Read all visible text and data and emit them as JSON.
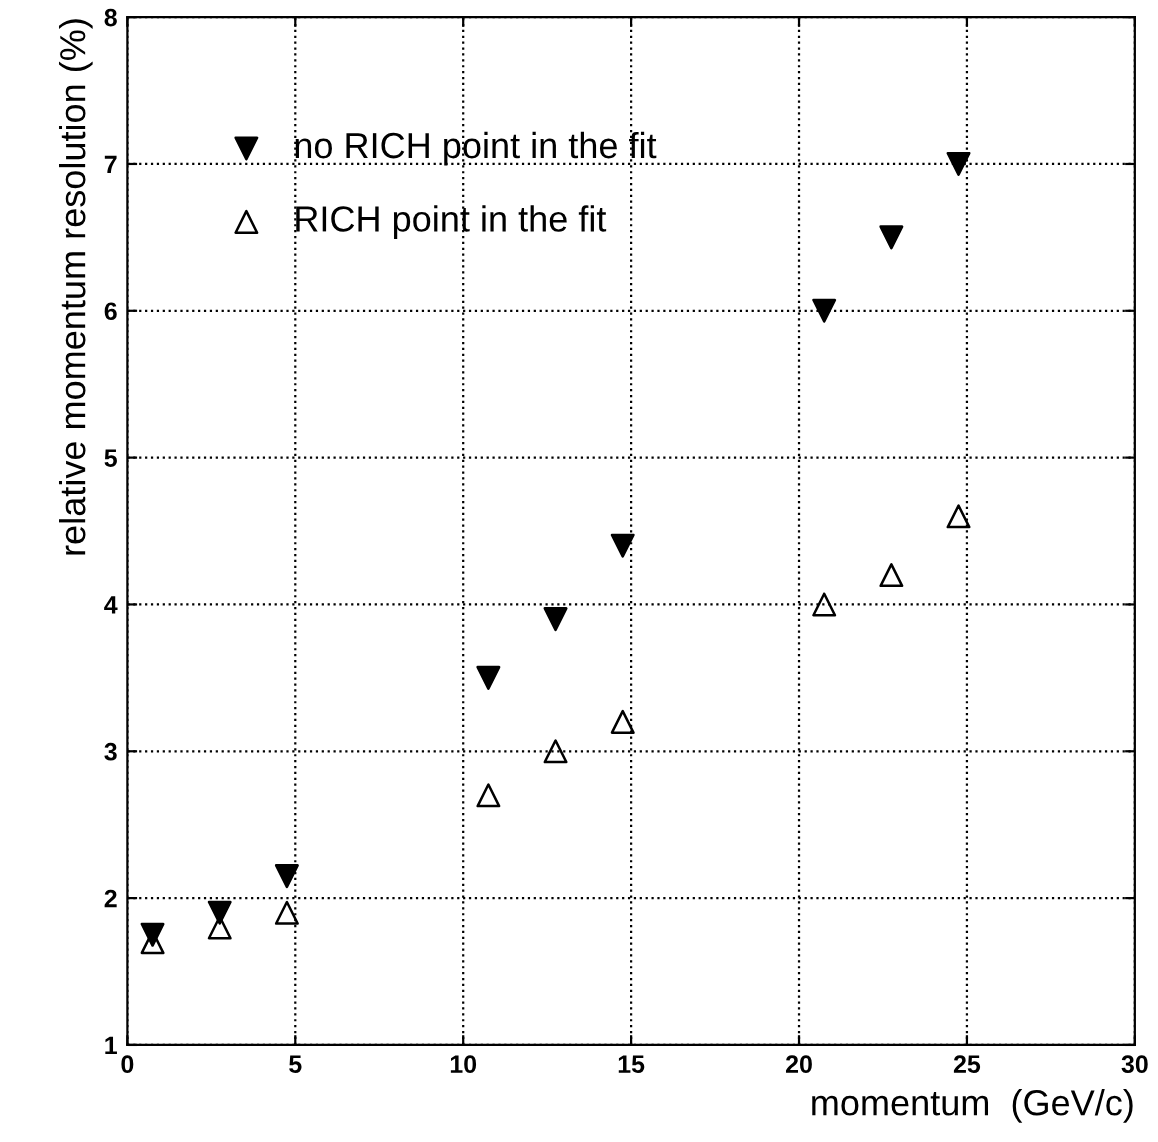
{
  "chart_data": {
    "type": "scatter",
    "xlabel": "momentum  (GeV/c)",
    "ylabel": "relative momentum resolution (%)",
    "xlim": [
      0,
      30
    ],
    "xticks": [
      0,
      5,
      10,
      15,
      20,
      25,
      30
    ],
    "ylim": [
      1,
      8
    ],
    "yticks": [
      1,
      2,
      3,
      4,
      5,
      6,
      7,
      8
    ],
    "grid": true,
    "legend": "top left",
    "marker": "triangle",
    "series": [
      {
        "name": "no RICH point in the fit",
        "color": "#000000",
        "x": [
          0.75,
          2.75,
          4.75,
          10.75,
          12.75,
          14.75,
          20.75,
          22.75,
          24.75
        ],
        "values": [
          1.75,
          1.9,
          2.15,
          3.5,
          3.9,
          4.4,
          6.0,
          6.5,
          7.0
        ]
      },
      {
        "name": "RICH point in the fit",
        "color": "#000000",
        "x": [
          0.75,
          2.75,
          4.75,
          10.75,
          12.75,
          14.75,
          20.75,
          22.75,
          24.75
        ],
        "values": [
          1.7,
          1.8,
          1.9,
          2.7,
          3.0,
          3.2,
          4.0,
          4.2,
          4.6
        ]
      }
    ]
  }
}
